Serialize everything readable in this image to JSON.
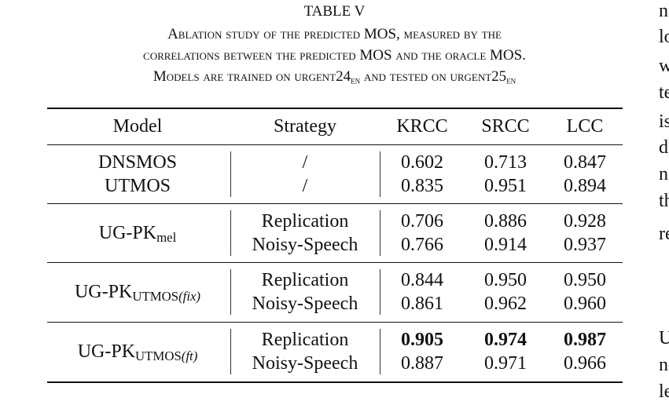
{
  "caption": {
    "label": "TABLE V",
    "line1": "Ablation study of the predicted MOS, measured by the",
    "line2": "correlations between the predicted MOS and the oracle MOS.",
    "line3": {
      "text_a": "Models are trained on urgent24",
      "sub_a": "en",
      "text_b": "and tested on urgent25",
      "sub_b": "en"
    }
  },
  "table": {
    "header": [
      "Model",
      "Strategy",
      "KRCC",
      "SRCC",
      "LCC"
    ],
    "groups": [
      {
        "rows": [
          {
            "model": "DNSMOS",
            "strategy": "/",
            "values": [
              "0.602",
              "0.713",
              "0.847"
            ]
          },
          {
            "model": "UTMOS",
            "strategy": "/",
            "values": [
              "0.835",
              "0.951",
              "0.894"
            ]
          }
        ]
      },
      {
        "model": {
          "base": "UG-PK",
          "sub": "mel"
        },
        "rows": [
          {
            "strategy": "Replication",
            "values": [
              "0.706",
              "0.886",
              "0.928"
            ]
          },
          {
            "strategy": "Noisy-Speech",
            "values": [
              "0.766",
              "0.914",
              "0.937"
            ]
          }
        ]
      },
      {
        "model": {
          "base": "UG-PK",
          "sub": "UTMOS",
          "sub_italic": "(fix)"
        },
        "rows": [
          {
            "strategy": "Replication",
            "values": [
              "0.844",
              "0.950",
              "0.950"
            ]
          },
          {
            "strategy": "Noisy-Speech",
            "values": [
              "0.861",
              "0.962",
              "0.960"
            ]
          }
        ]
      },
      {
        "model": {
          "base": "UG-PK",
          "sub": "UTMOS",
          "sub_italic": "(ft)"
        },
        "rows": [
          {
            "strategy": "Replication",
            "values": [
              "0.905",
              "0.974",
              "0.987"
            ],
            "bold": true
          },
          {
            "strategy": "Noisy-Speech",
            "values": [
              "0.887",
              "0.971",
              "0.966"
            ]
          }
        ]
      }
    ]
  },
  "side_text": {
    "top": [
      "n",
      "lo",
      "w",
      "te",
      "is",
      "d",
      "n",
      "th",
      "re"
    ],
    "bottom": [
      "U",
      "n",
      "le"
    ]
  }
}
